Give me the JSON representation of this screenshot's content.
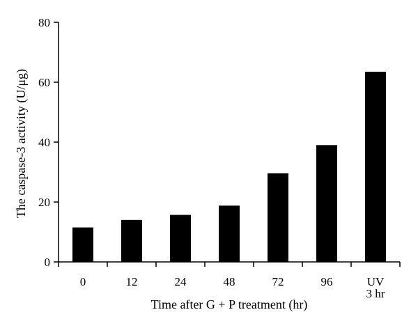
{
  "chart_data": {
    "type": "bar",
    "categories": [
      [
        "0"
      ],
      [
        "12"
      ],
      [
        "24"
      ],
      [
        "48"
      ],
      [
        "72"
      ],
      [
        "96"
      ],
      [
        "UV",
        "3 hr"
      ]
    ],
    "values": [
      11.5,
      14,
      15.7,
      18.8,
      29.6,
      39,
      63.5
    ],
    "xlabel": "Time after G + P treatment (hr)",
    "ylabel": "The caspase-3 activity (U/μg)",
    "ylim": [
      0,
      80
    ],
    "yticks": [
      0,
      20,
      40,
      60,
      80
    ],
    "grid": false,
    "legend": "none",
    "bar_color": "#000000"
  }
}
